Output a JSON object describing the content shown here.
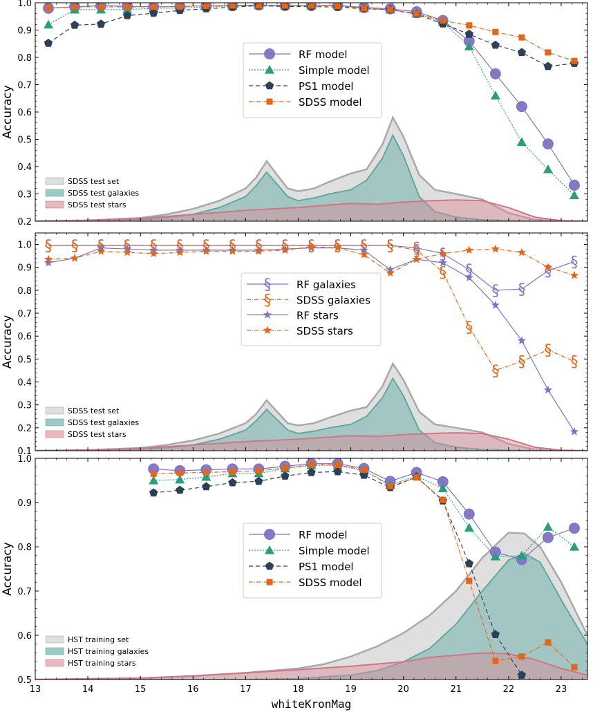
{
  "chart_data": [
    {
      "type": "line",
      "panel": "top",
      "ylabel": "Accuracy",
      "xlim": [
        13,
        23.5
      ],
      "ylim": [
        0.2,
        1.0
      ],
      "yticks": [
        "0.2",
        "0.3",
        "0.4",
        "0.5",
        "0.6",
        "0.7",
        "0.8",
        "0.9",
        "1.0"
      ],
      "ytick_values": [
        0.2,
        0.3,
        0.4,
        0.5,
        0.6,
        0.7,
        0.8,
        0.9,
        1.0
      ],
      "x": [
        13.25,
        13.75,
        14.25,
        14.75,
        15.25,
        15.75,
        16.25,
        16.75,
        17.25,
        17.75,
        18.25,
        18.75,
        19.25,
        19.75,
        20.25,
        20.75,
        21.25,
        21.75,
        22.25,
        22.75,
        23.25
      ],
      "series": [
        {
          "name": "RF model",
          "color": "#8073c4",
          "marker": "circle",
          "values": [
            0.98,
            0.985,
            0.99,
            0.987,
            0.985,
            0.986,
            0.989,
            0.99,
            0.992,
            0.99,
            0.99,
            0.99,
            0.983,
            0.978,
            0.967,
            0.935,
            0.86,
            0.74,
            0.62,
            0.483,
            0.332
          ]
        },
        {
          "name": "Simple model",
          "color": "#2a9d7b",
          "marker": "triangle",
          "values": [
            0.92,
            0.975,
            0.975,
            0.975,
            0.98,
            0.98,
            0.985,
            0.988,
            0.99,
            0.99,
            0.99,
            0.99,
            0.98,
            0.975,
            0.96,
            0.93,
            0.84,
            0.66,
            0.49,
            0.39,
            0.295
          ]
        },
        {
          "name": "PS1 model",
          "color": "#2e4057",
          "marker": "pentagon",
          "values": [
            0.852,
            0.918,
            0.922,
            0.953,
            0.962,
            0.972,
            0.978,
            0.984,
            0.989,
            0.986,
            0.986,
            0.984,
            0.978,
            0.975,
            0.958,
            0.923,
            0.885,
            0.845,
            0.818,
            0.767,
            0.778
          ]
        },
        {
          "name": "SDSS model",
          "color": "#e1671b",
          "marker": "square",
          "values": [
            0.98,
            0.985,
            0.985,
            0.985,
            0.985,
            0.986,
            0.989,
            0.99,
            0.99,
            0.99,
            0.99,
            0.988,
            0.98,
            0.975,
            0.96,
            0.935,
            0.917,
            0.893,
            0.873,
            0.818,
            0.787
          ]
        }
      ],
      "legend": [
        "RF model",
        "Simple model",
        "PS1 model",
        "SDSS model"
      ],
      "area_legend": [
        "SDSS test set",
        "SDSS test galaxies",
        "SDSS test stars"
      ],
      "areas": [
        {
          "name": "set",
          "x": [
            13,
            14,
            15,
            15.5,
            16,
            16.5,
            17,
            17.2,
            17.4,
            17.6,
            17.8,
            18,
            18.3,
            18.6,
            19,
            19.3,
            19.6,
            19.8,
            20,
            20.3,
            20.6,
            21,
            21.5,
            22,
            22.5,
            23,
            23.5
          ],
          "values": [
            0.2,
            0.203,
            0.212,
            0.225,
            0.245,
            0.275,
            0.32,
            0.36,
            0.42,
            0.37,
            0.32,
            0.31,
            0.32,
            0.345,
            0.375,
            0.39,
            0.48,
            0.58,
            0.51,
            0.37,
            0.315,
            0.3,
            0.28,
            0.23,
            0.205,
            0.2,
            0.2
          ]
        },
        {
          "name": "galaxies",
          "x": [
            13,
            14,
            15,
            15.5,
            16,
            16.5,
            17,
            17.2,
            17.4,
            17.6,
            17.8,
            18,
            18.3,
            18.6,
            19,
            19.3,
            19.6,
            19.8,
            20,
            20.3,
            20.6,
            21,
            21.5,
            22,
            22.5,
            23,
            23.5
          ],
          "values": [
            0.2,
            0.201,
            0.206,
            0.213,
            0.225,
            0.25,
            0.29,
            0.33,
            0.38,
            0.335,
            0.29,
            0.275,
            0.285,
            0.3,
            0.315,
            0.35,
            0.43,
            0.515,
            0.44,
            0.29,
            0.235,
            0.215,
            0.205,
            0.202,
            0.2,
            0.2,
            0.2
          ]
        },
        {
          "name": "stars",
          "x": [
            13,
            14,
            15,
            16,
            16.5,
            17,
            17.5,
            18,
            18.5,
            19,
            19.5,
            20,
            20.5,
            21,
            21.5,
            22,
            22.5,
            23,
            23.5
          ],
          "values": [
            0.2,
            0.202,
            0.21,
            0.225,
            0.232,
            0.24,
            0.245,
            0.25,
            0.258,
            0.265,
            0.262,
            0.27,
            0.275,
            0.278,
            0.275,
            0.25,
            0.215,
            0.202,
            0.2
          ]
        }
      ]
    },
    {
      "type": "line",
      "panel": "middle",
      "ylabel": "Accuracy",
      "xlim": [
        13,
        23.5
      ],
      "ylim": [
        0.1,
        1.05
      ],
      "yticks": [
        "0.1",
        "0.2",
        "0.3",
        "0.4",
        "0.5",
        "0.6",
        "0.7",
        "0.8",
        "0.9",
        "1.0"
      ],
      "ytick_values": [
        0.1,
        0.2,
        0.3,
        0.4,
        0.5,
        0.6,
        0.7,
        0.8,
        0.9,
        1.0
      ],
      "x": [
        13.25,
        13.75,
        14.25,
        14.75,
        15.25,
        15.75,
        16.25,
        16.75,
        17.25,
        17.75,
        18.25,
        18.75,
        19.25,
        19.75,
        20.25,
        20.75,
        21.25,
        21.75,
        22.25,
        22.75,
        23.25
      ],
      "series": [
        {
          "name": "RF galaxies",
          "color": "#8073c4",
          "marker": "section",
          "values": [
            0.995,
            0.995,
            0.995,
            0.995,
            0.995,
            0.995,
            0.995,
            0.995,
            0.995,
            0.995,
            0.995,
            0.995,
            0.995,
            0.995,
            0.985,
            0.96,
            0.89,
            0.8,
            0.805,
            0.885,
            0.925
          ]
        },
        {
          "name": "SDSS galaxies",
          "color": "#e1671b",
          "marker": "section",
          "values": [
            0.995,
            0.995,
            0.995,
            0.995,
            0.995,
            0.995,
            0.995,
            0.995,
            0.995,
            0.995,
            0.995,
            0.995,
            0.995,
            0.995,
            0.975,
            0.88,
            0.64,
            0.45,
            0.49,
            0.54,
            0.49
          ]
        },
        {
          "name": "RF stars",
          "color": "#8073c4",
          "marker": "star",
          "values": [
            0.92,
            0.94,
            0.985,
            0.98,
            0.975,
            0.975,
            0.975,
            0.975,
            0.975,
            0.98,
            0.985,
            0.985,
            0.975,
            0.89,
            0.935,
            0.92,
            0.855,
            0.735,
            0.58,
            0.365,
            0.183
          ]
        },
        {
          "name": "SDSS stars",
          "color": "#e1671b",
          "marker": "star",
          "values": [
            0.935,
            0.94,
            0.97,
            0.965,
            0.96,
            0.965,
            0.97,
            0.97,
            0.97,
            0.975,
            0.99,
            0.985,
            0.955,
            0.875,
            0.935,
            0.96,
            0.975,
            0.98,
            0.965,
            0.9,
            0.865
          ]
        }
      ],
      "legend": [
        "RF galaxies",
        "SDSS galaxies",
        "RF stars",
        "SDSS stars"
      ],
      "area_legend": [
        "SDSS test set",
        "SDSS test galaxies",
        "SDSS test stars"
      ],
      "areas": [
        {
          "name": "set",
          "x": [
            13,
            14,
            15,
            15.5,
            16,
            16.5,
            17,
            17.2,
            17.4,
            17.6,
            17.8,
            18,
            18.3,
            18.6,
            19,
            19.3,
            19.6,
            19.8,
            20,
            20.3,
            20.6,
            21,
            21.5,
            22,
            22.5,
            23,
            23.5
          ],
          "values": [
            0.1,
            0.103,
            0.112,
            0.125,
            0.145,
            0.175,
            0.22,
            0.26,
            0.32,
            0.27,
            0.22,
            0.21,
            0.22,
            0.245,
            0.275,
            0.29,
            0.38,
            0.48,
            0.41,
            0.27,
            0.215,
            0.2,
            0.18,
            0.13,
            0.105,
            0.1,
            0.1
          ]
        },
        {
          "name": "galaxies",
          "x": [
            13,
            14,
            15,
            15.5,
            16,
            16.5,
            17,
            17.2,
            17.4,
            17.6,
            17.8,
            18,
            18.3,
            18.6,
            19,
            19.3,
            19.6,
            19.8,
            20,
            20.3,
            20.6,
            21,
            21.5,
            22,
            22.5,
            23,
            23.5
          ],
          "values": [
            0.1,
            0.101,
            0.106,
            0.113,
            0.125,
            0.15,
            0.19,
            0.23,
            0.28,
            0.235,
            0.19,
            0.175,
            0.185,
            0.2,
            0.215,
            0.25,
            0.33,
            0.415,
            0.34,
            0.19,
            0.135,
            0.115,
            0.105,
            0.102,
            0.1,
            0.1,
            0.1
          ]
        },
        {
          "name": "stars",
          "x": [
            13,
            14,
            15,
            16,
            16.5,
            17,
            17.5,
            18,
            18.5,
            19,
            19.5,
            20,
            20.5,
            21,
            21.5,
            22,
            22.5,
            23,
            23.5
          ],
          "values": [
            0.1,
            0.102,
            0.11,
            0.125,
            0.132,
            0.14,
            0.145,
            0.15,
            0.158,
            0.165,
            0.162,
            0.17,
            0.175,
            0.178,
            0.175,
            0.15,
            0.115,
            0.102,
            0.1
          ]
        }
      ]
    },
    {
      "type": "line",
      "panel": "bottom",
      "ylabel": "Accuracy",
      "xlabel": "whiteKronMag",
      "xlim": [
        13,
        23.5
      ],
      "ylim": [
        0.5,
        1.0
      ],
      "yticks": [
        "0.5",
        "0.6",
        "0.7",
        "0.8",
        "0.9",
        "1.0"
      ],
      "ytick_values": [
        0.5,
        0.6,
        0.7,
        0.8,
        0.9,
        1.0
      ],
      "xticks": [
        "13",
        "14",
        "15",
        "16",
        "17",
        "18",
        "19",
        "20",
        "21",
        "22",
        "23"
      ],
      "xtick_values": [
        13,
        14,
        15,
        16,
        17,
        18,
        19,
        20,
        21,
        22,
        23
      ],
      "x": [
        15.25,
        15.75,
        16.25,
        16.75,
        17.25,
        17.75,
        18.25,
        18.75,
        19.25,
        19.75,
        20.25,
        20.75,
        21.25,
        21.75,
        22.25,
        22.75,
        23.25
      ],
      "series": [
        {
          "name": "RF model",
          "color": "#8073c4",
          "marker": "circle",
          "values": [
            0.976,
            0.972,
            0.974,
            0.976,
            0.976,
            0.982,
            0.988,
            0.988,
            0.977,
            0.948,
            0.968,
            0.947,
            0.874,
            0.788,
            0.771,
            0.821,
            0.842
          ]
        },
        {
          "name": "Simple model",
          "color": "#2a9d7b",
          "marker": "triangle",
          "values": [
            0.95,
            0.952,
            0.958,
            0.966,
            0.966,
            0.977,
            0.984,
            0.984,
            0.972,
            0.94,
            0.96,
            0.932,
            0.843,
            0.778,
            0.78,
            0.845,
            0.8
          ]
        },
        {
          "name": "PS1 model",
          "color": "#2e4057",
          "marker": "pentagon",
          "values": [
            0.922,
            0.928,
            0.936,
            0.945,
            0.948,
            0.96,
            0.968,
            0.97,
            0.962,
            0.934,
            0.958,
            0.904,
            0.762,
            0.602,
            0.51,
            null,
            null
          ]
        },
        {
          "name": "SDSS model",
          "color": "#e1671b",
          "marker": "square",
          "values": [
            0.965,
            0.967,
            0.968,
            0.97,
            0.972,
            0.978,
            0.986,
            0.985,
            0.974,
            0.937,
            0.957,
            0.906,
            0.723,
            0.542,
            0.552,
            0.584,
            0.528
          ]
        }
      ],
      "legend": [
        "RF model",
        "Simple model",
        "PS1 model",
        "SDSS model"
      ],
      "area_legend": [
        "HST training set",
        "HST training galaxies",
        "HST training stars"
      ],
      "areas": [
        {
          "name": "set",
          "x": [
            13,
            15,
            16,
            17,
            18,
            18.5,
            19,
            19.5,
            20,
            20.5,
            21,
            21.5,
            22,
            22.3,
            22.6,
            23,
            23.5
          ],
          "values": [
            0.5,
            0.503,
            0.508,
            0.515,
            0.525,
            0.535,
            0.552,
            0.575,
            0.605,
            0.645,
            0.7,
            0.775,
            0.832,
            0.83,
            0.8,
            0.72,
            0.6
          ]
        },
        {
          "name": "galaxies",
          "x": [
            13,
            17,
            18,
            19,
            19.5,
            20,
            20.5,
            21,
            21.5,
            22,
            22.3,
            22.6,
            23,
            23.5
          ],
          "values": [
            0.5,
            0.5,
            0.502,
            0.51,
            0.52,
            0.54,
            0.57,
            0.625,
            0.7,
            0.77,
            0.785,
            0.765,
            0.68,
            0.58
          ]
        },
        {
          "name": "stars",
          "x": [
            13,
            15,
            16,
            17,
            18,
            19,
            20,
            20.5,
            21,
            21.5,
            22,
            22.5,
            23,
            23.5
          ],
          "values": [
            0.5,
            0.503,
            0.508,
            0.515,
            0.522,
            0.53,
            0.54,
            0.55,
            0.555,
            0.56,
            0.558,
            0.545,
            0.525,
            0.51
          ]
        }
      ]
    }
  ]
}
